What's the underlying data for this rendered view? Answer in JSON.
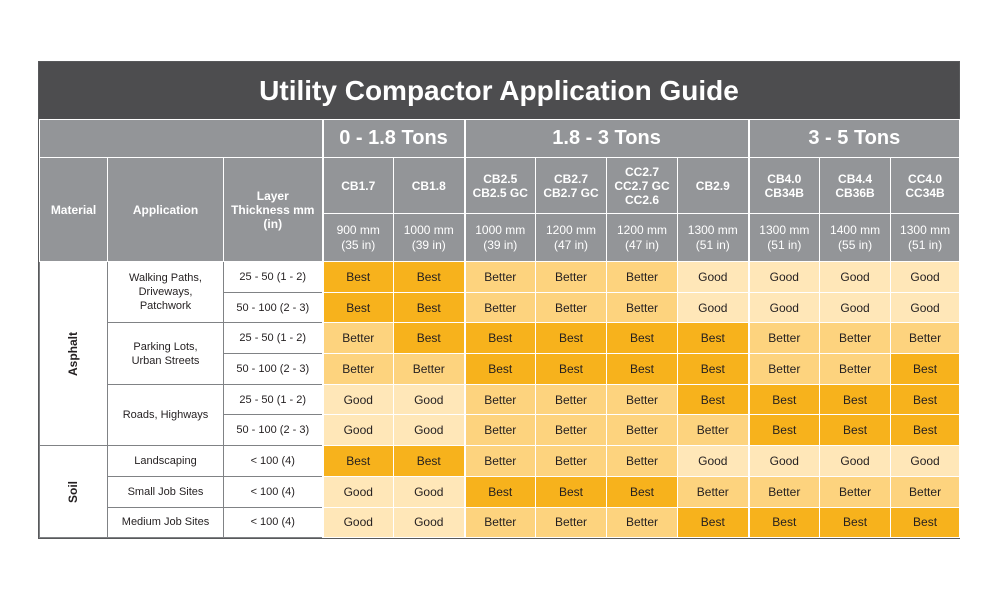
{
  "title": "Utility Compactor Application Guide",
  "header": {
    "material": "Material",
    "application": "Application",
    "layer_thickness": "Layer Thickness mm (in)",
    "groups": [
      "0 - 1.8 Tons",
      "1.8 - 3 Tons",
      "3 - 5 Tons"
    ],
    "models": [
      [
        "CB1.7"
      ],
      [
        "CB1.8"
      ],
      [
        "CB2.5",
        "CB2.5 GC"
      ],
      [
        "CB2.7",
        "CB2.7 GC"
      ],
      [
        "CC2.7",
        "CC2.7 GC",
        "CC2.6"
      ],
      [
        "CB2.9"
      ],
      [
        "CB4.0",
        "CB34B"
      ],
      [
        "CB4.4",
        "CB36B"
      ],
      [
        "CC4.0",
        "CC34B"
      ]
    ],
    "drum_widths": [
      [
        "900 mm",
        "(35 in)"
      ],
      [
        "1000 mm",
        "(39 in)"
      ],
      [
        "1000 mm",
        "(39 in)"
      ],
      [
        "1200 mm",
        "(47 in)"
      ],
      [
        "1200 mm",
        "(47 in)"
      ],
      [
        "1300 mm",
        "(51 in)"
      ],
      [
        "1300 mm",
        "(51 in)"
      ],
      [
        "1400 mm",
        "(55 in)"
      ],
      [
        "1300 mm",
        "(51 in)"
      ]
    ]
  },
  "materials": [
    {
      "name": "Asphalt",
      "applications": [
        {
          "name": [
            "Walking Paths,",
            "Driveways,",
            "Patchwork"
          ],
          "rows": [
            {
              "thickness": "25 - 50 (1 - 2)",
              "ratings": [
                "Best",
                "Best",
                "Better",
                "Better",
                "Better",
                "Good",
                "Good",
                "Good",
                "Good"
              ]
            },
            {
              "thickness": "50 - 100 (2 - 3)",
              "ratings": [
                "Best",
                "Best",
                "Better",
                "Better",
                "Better",
                "Good",
                "Good",
                "Good",
                "Good"
              ]
            }
          ]
        },
        {
          "name": [
            "Parking Lots,",
            "Urban Streets"
          ],
          "rows": [
            {
              "thickness": "25 - 50 (1 - 2)",
              "ratings": [
                "Better",
                "Best",
                "Best",
                "Best",
                "Best",
                "Best",
                "Better",
                "Better",
                "Better"
              ]
            },
            {
              "thickness": "50 - 100 (2 - 3)",
              "ratings": [
                "Better",
                "Better",
                "Best",
                "Best",
                "Best",
                "Best",
                "Better",
                "Better",
                "Best"
              ]
            }
          ]
        },
        {
          "name": [
            "Roads, Highways"
          ],
          "rows": [
            {
              "thickness": "25 - 50 (1 - 2)",
              "ratings": [
                "Good",
                "Good",
                "Better",
                "Better",
                "Better",
                "Best",
                "Best",
                "Best",
                "Best"
              ]
            },
            {
              "thickness": "50 - 100 (2 - 3)",
              "ratings": [
                "Good",
                "Good",
                "Better",
                "Better",
                "Better",
                "Better",
                "Best",
                "Best",
                "Best"
              ]
            }
          ]
        }
      ]
    },
    {
      "name": "Soil",
      "applications": [
        {
          "name": [
            "Landscaping"
          ],
          "rows": [
            {
              "thickness": "< 100 (4)",
              "ratings": [
                "Best",
                "Best",
                "Better",
                "Better",
                "Better",
                "Good",
                "Good",
                "Good",
                "Good"
              ]
            }
          ]
        },
        {
          "name": [
            "Small Job Sites"
          ],
          "rows": [
            {
              "thickness": "< 100 (4)",
              "ratings": [
                "Good",
                "Good",
                "Best",
                "Best",
                "Best",
                "Better",
                "Better",
                "Better",
                "Better"
              ]
            }
          ]
        },
        {
          "name": [
            "Medium Job Sites"
          ],
          "rows": [
            {
              "thickness": "< 100 (4)",
              "ratings": [
                "Good",
                "Good",
                "Better",
                "Better",
                "Better",
                "Best",
                "Best",
                "Best",
                "Best"
              ]
            }
          ]
        }
      ]
    }
  ],
  "colors": {
    "title_bg": "#4d4d4f",
    "header_bg": "#939598",
    "best": "#f7b21c",
    "better": "#fdd37e",
    "good": "#ffe7b8"
  }
}
